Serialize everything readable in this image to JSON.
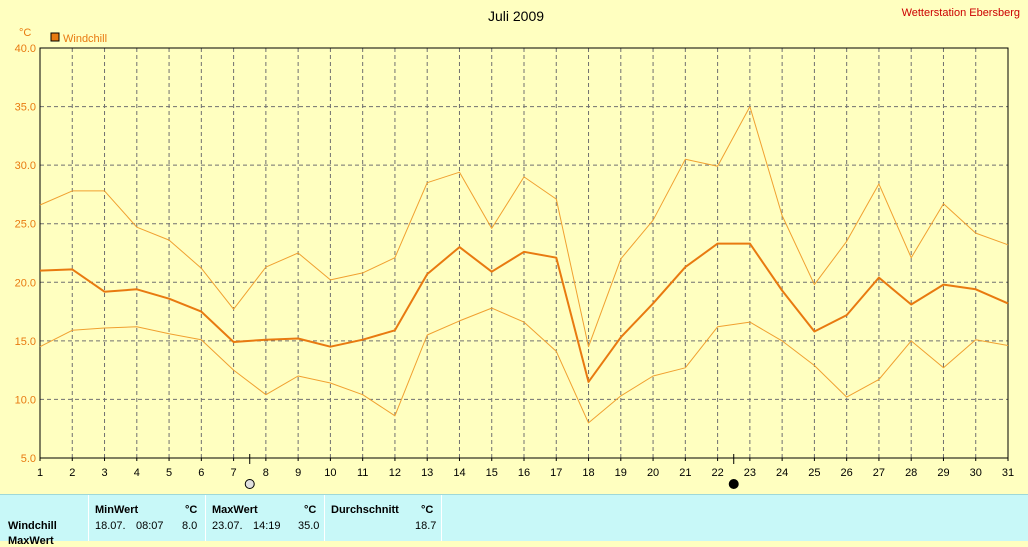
{
  "title": "Juli 2009",
  "station": "Wetterstation Ebersberg",
  "colors": {
    "background": "#ffffc0",
    "main_line": "#e87a10",
    "thin_line": "#f0a030",
    "station_text": "#cc0000",
    "axis_text": "#e87a10",
    "stats_bg": "#c8f8f8"
  },
  "chart_data": {
    "type": "line",
    "ylabel": "°C",
    "ylim": [
      5.0,
      40.0
    ],
    "yticks": [
      "5.0",
      "10.0",
      "15.0",
      "20.0",
      "25.0",
      "30.0",
      "35.0",
      "40.0"
    ],
    "xlim": [
      1,
      31
    ],
    "categories": [
      "1",
      "2",
      "3",
      "4",
      "5",
      "6",
      "7",
      "8",
      "9",
      "10",
      "11",
      "12",
      "13",
      "14",
      "15",
      "16",
      "17",
      "18",
      "19",
      "20",
      "21",
      "22",
      "23",
      "24",
      "25",
      "26",
      "27",
      "28",
      "29",
      "30",
      "31"
    ],
    "grid": true,
    "legend": "top-left",
    "series": [
      {
        "name": "Windchill",
        "role": "avg",
        "values": [
          21.0,
          21.1,
          19.2,
          19.4,
          18.6,
          17.5,
          14.9,
          15.1,
          15.2,
          14.5,
          15.1,
          15.9,
          20.7,
          23.0,
          20.9,
          22.6,
          22.1,
          11.5,
          15.3,
          18.2,
          21.3,
          23.3,
          23.3,
          19.3,
          15.8,
          17.2,
          20.4,
          18.1,
          19.8,
          19.4,
          18.2
        ]
      },
      {
        "role": "max",
        "values": [
          26.6,
          27.8,
          27.8,
          24.7,
          23.6,
          21.2,
          17.7,
          21.3,
          22.5,
          20.2,
          20.8,
          22.1,
          28.5,
          29.4,
          24.6,
          29.0,
          27.1,
          14.5,
          22.0,
          25.3,
          30.5,
          29.9,
          35.0,
          25.7,
          19.8,
          23.5,
          28.4,
          22.1,
          26.7,
          24.2,
          23.2
        ]
      },
      {
        "role": "min",
        "values": [
          14.5,
          15.9,
          16.1,
          16.2,
          15.6,
          15.1,
          12.5,
          10.4,
          12.0,
          11.4,
          10.4,
          8.6,
          15.5,
          16.7,
          17.8,
          16.6,
          14.1,
          8.0,
          10.3,
          12.0,
          12.7,
          16.2,
          16.6,
          15.0,
          12.9,
          10.2,
          11.7,
          15.0,
          12.7,
          15.1,
          14.6
        ]
      }
    ],
    "moon_markers": [
      {
        "day": 7.5,
        "phase": "full"
      },
      {
        "day": 22.5,
        "phase": "new"
      }
    ]
  },
  "stats": {
    "row_label": "Windchill",
    "row_label_2": "MaxWert",
    "min_header": "MinWert",
    "max_header": "MaxWert",
    "avg_header": "Durchschnitt",
    "unit": "°C",
    "min_date": "18.07.",
    "min_time": "08:07",
    "min_value": "8.0",
    "max_date": "23.07.",
    "max_time": "14:19",
    "max_value": "35.0",
    "avg_value": "18.7"
  }
}
